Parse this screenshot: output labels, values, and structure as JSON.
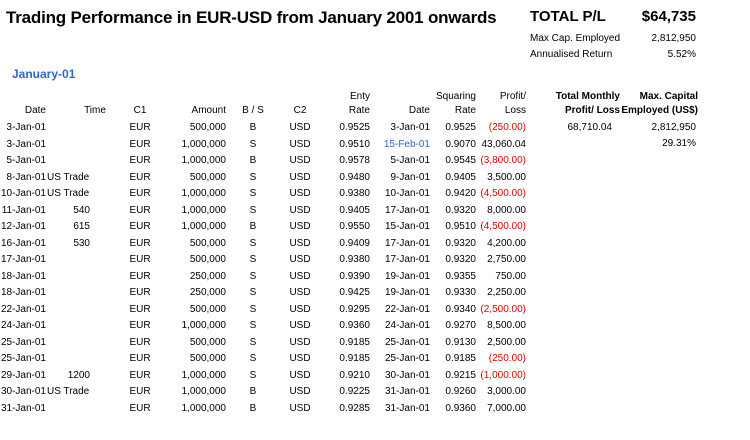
{
  "title": "Trading Performance in EUR-USD from January 2001 onwards",
  "summary": {
    "total_label": "TOTAL P/L",
    "total_value": "$64,735",
    "max_cap_label": "Max Cap. Employed",
    "max_cap_value": "2,812,950",
    "annual_return_label": "Annualised Return",
    "annual_return_value": "5.52%"
  },
  "month_label": "January-01",
  "headers": {
    "date": "Date",
    "time": "Time",
    "c1": "C1",
    "amount": "Amount",
    "bs": "B / S",
    "c2": "C2",
    "entry_rate_1": "Enty",
    "entry_rate_2": "Rate",
    "sq_date": "Date",
    "sq_rate_1": "Squaring",
    "sq_rate_2": "Rate",
    "pl_1": "Profit/",
    "pl_2": "Loss",
    "monthly_1": "Total Monthly",
    "monthly_2": "Profit/ Loss",
    "maxcap_1": "Max. Capital",
    "maxcap_2": "Employed (US$)"
  },
  "month_totals": {
    "monthly_pl": "68,710.04",
    "max_capital": "2,812,950",
    "pct": "29.31%"
  },
  "colors": {
    "negative": "#e00000",
    "highlight": "#3366cc"
  },
  "rows": [
    {
      "date": "3-Jan-01",
      "time": "",
      "c1": "EUR",
      "amount": "500,000",
      "bs": "B",
      "c2": "USD",
      "rate": "0.9525",
      "sqdate": "3-Jan-01",
      "sqrate": "0.9525",
      "pl": "(250.00)",
      "neg": true,
      "sqblue": false
    },
    {
      "date": "3-Jan-01",
      "time": "",
      "c1": "EUR",
      "amount": "1,000,000",
      "bs": "S",
      "c2": "USD",
      "rate": "0.9510",
      "sqdate": "15-Feb-01",
      "sqrate": "0.9070",
      "pl": "43,060.04",
      "neg": false,
      "sqblue": true
    },
    {
      "date": "5-Jan-01",
      "time": "",
      "c1": "EUR",
      "amount": "1,000,000",
      "bs": "B",
      "c2": "USD",
      "rate": "0.9578",
      "sqdate": "5-Jan-01",
      "sqrate": "0.9545",
      "pl": "(3,800.00)",
      "neg": true,
      "sqblue": false
    },
    {
      "date": "8-Jan-01",
      "time": "US Trade",
      "c1": "EUR",
      "amount": "500,000",
      "bs": "S",
      "c2": "USD",
      "rate": "0.9480",
      "sqdate": "9-Jan-01",
      "sqrate": "0.9405",
      "pl": "3,500.00",
      "neg": false,
      "sqblue": false
    },
    {
      "date": "10-Jan-01",
      "time": "US Trade",
      "c1": "EUR",
      "amount": "1,000,000",
      "bs": "S",
      "c2": "USD",
      "rate": "0.9380",
      "sqdate": "10-Jan-01",
      "sqrate": "0.9420",
      "pl": "(4,500.00)",
      "neg": true,
      "sqblue": false
    },
    {
      "date": "11-Jan-01",
      "time": "540",
      "c1": "EUR",
      "amount": "1,000,000",
      "bs": "S",
      "c2": "USD",
      "rate": "0.9405",
      "sqdate": "17-Jan-01",
      "sqrate": "0.9320",
      "pl": "8,000.00",
      "neg": false,
      "sqblue": false
    },
    {
      "date": "12-Jan-01",
      "time": "615",
      "c1": "EUR",
      "amount": "1,000,000",
      "bs": "B",
      "c2": "USD",
      "rate": "0.9550",
      "sqdate": "15-Jan-01",
      "sqrate": "0.9510",
      "pl": "(4,500.00)",
      "neg": true,
      "sqblue": false
    },
    {
      "date": "16-Jan-01",
      "time": "530",
      "c1": "EUR",
      "amount": "500,000",
      "bs": "S",
      "c2": "USD",
      "rate": "0.9409",
      "sqdate": "17-Jan-01",
      "sqrate": "0.9320",
      "pl": "4,200.00",
      "neg": false,
      "sqblue": false
    },
    {
      "date": "17-Jan-01",
      "time": "",
      "c1": "EUR",
      "amount": "500,000",
      "bs": "S",
      "c2": "USD",
      "rate": "0.9380",
      "sqdate": "17-Jan-01",
      "sqrate": "0.9320",
      "pl": "2,750.00",
      "neg": false,
      "sqblue": false
    },
    {
      "date": "18-Jan-01",
      "time": "",
      "c1": "EUR",
      "amount": "250,000",
      "bs": "S",
      "c2": "USD",
      "rate": "0.9390",
      "sqdate": "19-Jan-01",
      "sqrate": "0.9355",
      "pl": "750.00",
      "neg": false,
      "sqblue": false
    },
    {
      "date": "18-Jan-01",
      "time": "",
      "c1": "EUR",
      "amount": "250,000",
      "bs": "S",
      "c2": "USD",
      "rate": "0.9425",
      "sqdate": "19-Jan-01",
      "sqrate": "0.9330",
      "pl": "2,250.00",
      "neg": false,
      "sqblue": false
    },
    {
      "date": "22-Jan-01",
      "time": "",
      "c1": "EUR",
      "amount": "500,000",
      "bs": "S",
      "c2": "USD",
      "rate": "0.9295",
      "sqdate": "22-Jan-01",
      "sqrate": "0.9340",
      "pl": "(2,500.00)",
      "neg": true,
      "sqblue": false
    },
    {
      "date": "24-Jan-01",
      "time": "",
      "c1": "EUR",
      "amount": "1,000,000",
      "bs": "S",
      "c2": "USD",
      "rate": "0.9360",
      "sqdate": "24-Jan-01",
      "sqrate": "0.9270",
      "pl": "8,500.00",
      "neg": false,
      "sqblue": false
    },
    {
      "date": "25-Jan-01",
      "time": "",
      "c1": "EUR",
      "amount": "500,000",
      "bs": "S",
      "c2": "USD",
      "rate": "0.9185",
      "sqdate": "25-Jan-01",
      "sqrate": "0.9130",
      "pl": "2,500.00",
      "neg": false,
      "sqblue": false
    },
    {
      "date": "25-Jan-01",
      "time": "",
      "c1": "EUR",
      "amount": "500,000",
      "bs": "S",
      "c2": "USD",
      "rate": "0.9185",
      "sqdate": "25-Jan-01",
      "sqrate": "0.9185",
      "pl": "(250.00)",
      "neg": true,
      "sqblue": false
    },
    {
      "date": "29-Jan-01",
      "time": "1200",
      "c1": "EUR",
      "amount": "1,000,000",
      "bs": "S",
      "c2": "USD",
      "rate": "0.9210",
      "sqdate": "30-Jan-01",
      "sqrate": "0.9215",
      "pl": "(1,000.00)",
      "neg": true,
      "sqblue": false
    },
    {
      "date": "30-Jan-01",
      "time": "US Trade",
      "c1": "EUR",
      "amount": "1,000,000",
      "bs": "B",
      "c2": "USD",
      "rate": "0.9225",
      "sqdate": "31-Jan-01",
      "sqrate": "0.9260",
      "pl": "3,000.00",
      "neg": false,
      "sqblue": false
    },
    {
      "date": "31-Jan-01",
      "time": "",
      "c1": "EUR",
      "amount": "1,000,000",
      "bs": "B",
      "c2": "USD",
      "rate": "0.9285",
      "sqdate": "31-Jan-01",
      "sqrate": "0.9360",
      "pl": "7,000.00",
      "neg": false,
      "sqblue": false
    }
  ]
}
